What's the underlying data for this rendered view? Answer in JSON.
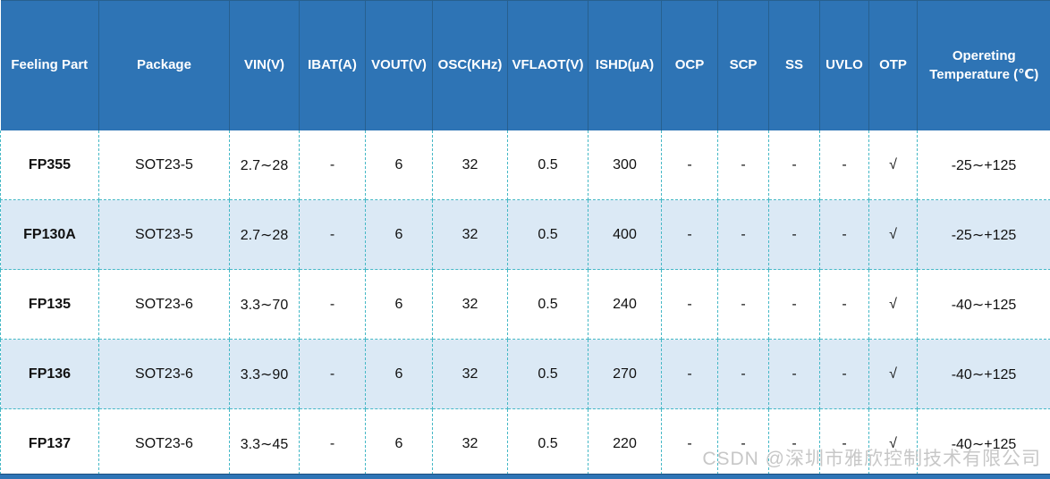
{
  "table": {
    "headers": [
      "Feeling Part",
      "Package",
      "VIN(V)",
      "IBAT(A)",
      "VOUT(V)",
      "OSC(KHz)",
      "VFLAOT(V)",
      "ISHD(µA)",
      "OCP",
      "SCP",
      "SS",
      "UVLO",
      "OTP",
      "Opereting Temperature (℃)"
    ],
    "rows": [
      {
        "cells": [
          "FP355",
          "SOT23-5",
          "2.7∼28",
          "-",
          "6",
          "32",
          "0.5",
          "300",
          "-",
          "-",
          "-",
          "-",
          "√",
          "-25∼+125"
        ]
      },
      {
        "cells": [
          "FP130A",
          "SOT23-5",
          "2.7∼28",
          "-",
          "6",
          "32",
          "0.5",
          "400",
          "-",
          "-",
          "-",
          "-",
          "√",
          "-25∼+125"
        ]
      },
      {
        "cells": [
          "FP135",
          "SOT23-6",
          "3.3∼70",
          "-",
          "6",
          "32",
          "0.5",
          "240",
          "-",
          "-",
          "-",
          "-",
          "√",
          "-40∼+125"
        ]
      },
      {
        "cells": [
          "FP136",
          "SOT23-6",
          "3.3∼90",
          "-",
          "6",
          "32",
          "0.5",
          "270",
          "-",
          "-",
          "-",
          "-",
          "√",
          "-40∼+125"
        ]
      },
      {
        "cells": [
          "FP137",
          "SOT23-6",
          "3.3∼45",
          "-",
          "6",
          "32",
          "0.5",
          "220",
          "-",
          "-",
          "-",
          "-",
          "√",
          "-40∼+125"
        ]
      }
    ]
  },
  "watermark": "CSDN @深圳市雅欣控制技术有限公司",
  "colors": {
    "header_bg": "#2e74b5",
    "header_text": "#ffffff",
    "row_alt_bg": "#dbe9f5",
    "dashed_border": "#45b8c6",
    "bottom_bar": "#2e74b5",
    "watermark_text": "#c7c7c7"
  }
}
